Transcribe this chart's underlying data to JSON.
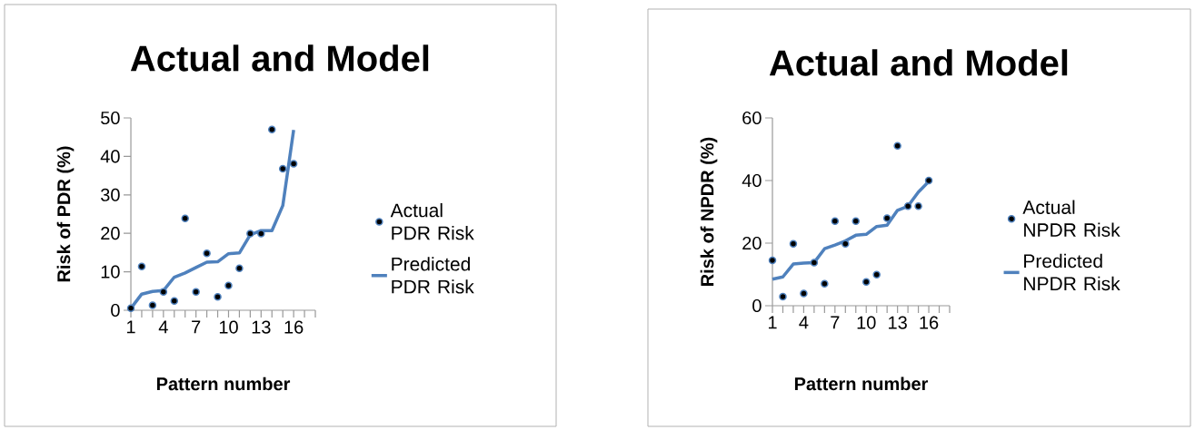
{
  "chart_data": [
    {
      "type": "scatter",
      "title": "Actual and Model",
      "xlabel": "Pattern number",
      "ylabel": "Risk of PDR (%)",
      "x": [
        1,
        2,
        3,
        4,
        5,
        6,
        7,
        8,
        9,
        10,
        11,
        12,
        13,
        14,
        15,
        16
      ],
      "xlim": [
        1,
        18
      ],
      "xticks": [
        1,
        {
          "value": 2,
          "label": null
        },
        {
          "value": 3,
          "label": null
        },
        4,
        {
          "value": 5,
          "label": null
        },
        {
          "value": 6,
          "label": null
        },
        7,
        {
          "value": 8,
          "label": null
        },
        {
          "value": 9,
          "label": null
        },
        10,
        {
          "value": 11,
          "label": null
        },
        {
          "value": 12,
          "label": null
        },
        13,
        {
          "value": 14,
          "label": null
        },
        {
          "value": 15,
          "label": null
        },
        16,
        {
          "value": 17,
          "label": null
        },
        {
          "value": 18,
          "label": null
        }
      ],
      "ylim": [
        0,
        50
      ],
      "yticks": [
        0,
        10,
        20,
        30,
        40,
        50
      ],
      "legend": "right",
      "series": [
        {
          "name": "Actual PDR Risk",
          "marker": "circle",
          "color": "#4f81bd",
          "values": [
            0.5,
            11.4,
            1.3,
            4.8,
            2.4,
            23.9,
            4.8,
            14.8,
            3.5,
            6.4,
            10.9,
            19.9,
            19.9,
            47,
            36.8,
            38.1
          ]
        },
        {
          "name": "Predicted PDR Risk",
          "type": "line",
          "marker": "none",
          "color": "#4f81bd",
          "values": [
            0.5,
            4.2,
            4.9,
            5.1,
            8.6,
            9.7,
            11.1,
            12.5,
            12.6,
            14.7,
            14.9,
            19.6,
            20.7,
            20.7,
            27.2,
            46.9
          ]
        }
      ]
    },
    {
      "type": "scatter",
      "title": "Actual and Model",
      "xlabel": "Pattern number",
      "ylabel": "Risk of NPDR (%)",
      "x": [
        1,
        2,
        3,
        4,
        5,
        6,
        7,
        8,
        9,
        10,
        11,
        12,
        13,
        14,
        15,
        16
      ],
      "xlim": [
        1,
        18
      ],
      "xticks": [
        1,
        {
          "value": 2,
          "label": null
        },
        {
          "value": 3,
          "label": null
        },
        4,
        {
          "value": 5,
          "label": null
        },
        {
          "value": 6,
          "label": null
        },
        7,
        {
          "value": 8,
          "label": null
        },
        {
          "value": 9,
          "label": null
        },
        10,
        {
          "value": 11,
          "label": null
        },
        {
          "value": 12,
          "label": null
        },
        13,
        {
          "value": 14,
          "label": null
        },
        {
          "value": 15,
          "label": null
        },
        16,
        {
          "value": 17,
          "label": null
        },
        {
          "value": 18,
          "label": null
        }
      ],
      "ylim": [
        0,
        60
      ],
      "yticks": [
        0,
        20,
        40,
        60
      ],
      "legend": "right",
      "series": [
        {
          "name": "Actual NPDR Risk",
          "marker": "circle",
          "color": "#4f81bd",
          "values": [
            14.5,
            2.9,
            19.8,
            3.9,
            13.8,
            7.0,
            27,
            19.8,
            27,
            7.6,
            9.9,
            28,
            51.1,
            31.8,
            31.8,
            40
          ]
        },
        {
          "name": "Predicted NPDR Risk",
          "type": "line",
          "marker": "none",
          "color": "#4f81bd",
          "values": [
            8.5,
            9.2,
            13.3,
            13.6,
            13.8,
            18.2,
            19.4,
            20.7,
            22.5,
            22.8,
            25.3,
            25.7,
            30.5,
            31.8,
            36.3,
            39.7
          ]
        }
      ]
    }
  ]
}
